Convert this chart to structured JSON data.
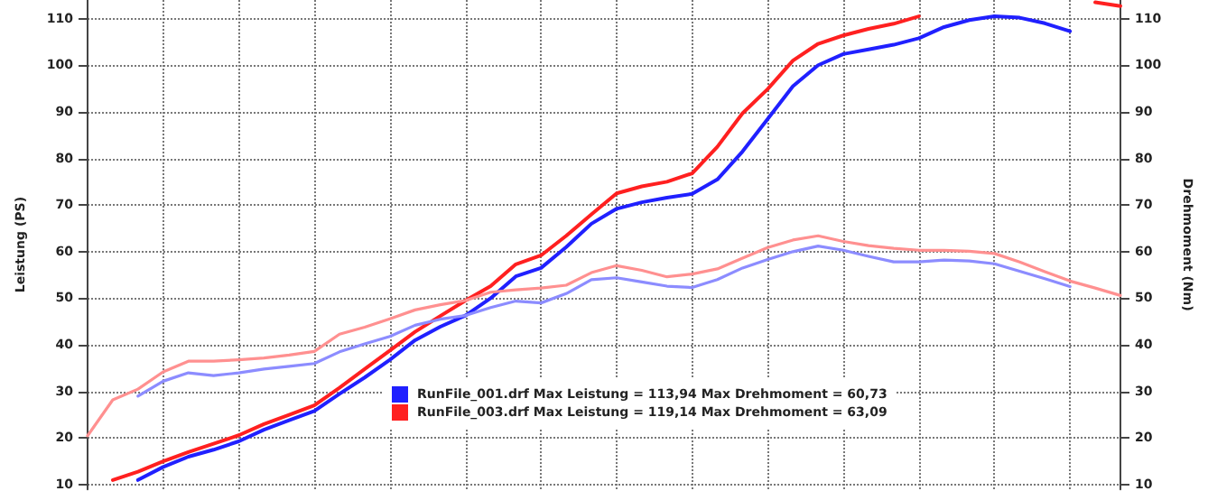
{
  "chart_data": {
    "type": "line",
    "ylabel": "Leistung (PS)",
    "y2label": "Drehmoment (Nm)",
    "categories": [
      null,
      null,
      null,
      null,
      null,
      null,
      null,
      null,
      null,
      null,
      null,
      null,
      null,
      null,
      null,
      null,
      null,
      null,
      null,
      null,
      null,
      null,
      null,
      null,
      null,
      null,
      null,
      null,
      null,
      null,
      null,
      null,
      null,
      null,
      null,
      null,
      null,
      null,
      null,
      null,
      null,
      null
    ],
    "series": [
      {
        "name": "RunFile_001.drf Max Leistung = 113,94 Max Drehmoment = 60,73",
        "color": "#2020ff",
        "values": [
          null,
          null,
          11,
          13.8,
          16,
          17.5,
          19.3,
          21.8,
          23.8,
          25.8,
          29.5,
          33,
          36.8,
          41,
          43.9,
          46.3,
          50,
          54.7,
          56.5,
          61,
          66,
          69.2,
          70.6,
          71.6,
          72.4,
          75.5,
          81.5,
          88.5,
          95.5,
          100,
          102.4,
          103.4,
          104.4,
          105.8,
          108.2,
          109.7,
          110.5,
          110.2,
          109,
          107.3,
          null,
          null
        ]
      },
      {
        "name": "RunFile_003.drf Max Leistung = 119,14 Max Drehmoment = 63,09",
        "color": "#ff2020",
        "values": [
          null,
          11,
          12.8,
          15,
          17,
          18.8,
          20.6,
          23,
          25,
          27,
          30.8,
          34.8,
          38.8,
          42.8,
          46.2,
          49.5,
          52.6,
          57.3,
          59.2,
          63.4,
          68,
          72.5,
          74,
          75,
          76.8,
          82.5,
          89.7,
          94.9,
          101,
          104.6,
          106.4,
          107.8,
          108.9,
          110.5,
          null,
          null,
          null,
          null,
          null,
          null,
          113.5,
          112.7
        ]
      },
      {
        "color": "#8c8cff",
        "axis": "y2",
        "values": [
          null,
          null,
          29,
          32.2,
          34,
          33.4,
          34,
          34.8,
          35.4,
          36,
          38.5,
          40.2,
          41.8,
          44.2,
          45.5,
          46.3,
          48,
          49.4,
          49,
          51,
          54,
          54.4,
          53.5,
          52.6,
          52.3,
          54,
          56.5,
          58.3,
          60,
          61.2,
          60.3,
          59,
          57.8,
          57.8,
          58.2,
          58,
          57.4,
          55.8,
          54.2,
          52.5,
          null,
          null
        ]
      },
      {
        "color": "#ff9090",
        "axis": "y2",
        "values": [
          20.5,
          28.2,
          30.5,
          34.2,
          36.5,
          36.5,
          36.8,
          37.2,
          37.8,
          38.6,
          42.3,
          43.8,
          45.6,
          47.5,
          48.6,
          49.5,
          51.3,
          51.8,
          52.2,
          52.8,
          55.5,
          57,
          56,
          54.6,
          55.2,
          56.3,
          58.6,
          60.9,
          62.5,
          63.4,
          62.2,
          61.3,
          60.7,
          60.3,
          60.3,
          60.1,
          59.6,
          57.8,
          55.7,
          53.7,
          52.2,
          50.6
        ]
      }
    ],
    "ylim": [
      9,
      114
    ],
    "yticks": [
      10,
      20,
      30,
      40,
      50,
      60,
      70,
      80,
      90,
      100,
      110
    ],
    "y2lim": [
      9,
      114
    ],
    "y2ticks": [
      10,
      20,
      30,
      40,
      50,
      60,
      70,
      80,
      90,
      100,
      110
    ],
    "grid": true,
    "legend": "bottom",
    "tick_labels": "y",
    "marker": "none",
    "line_style": "solid"
  }
}
